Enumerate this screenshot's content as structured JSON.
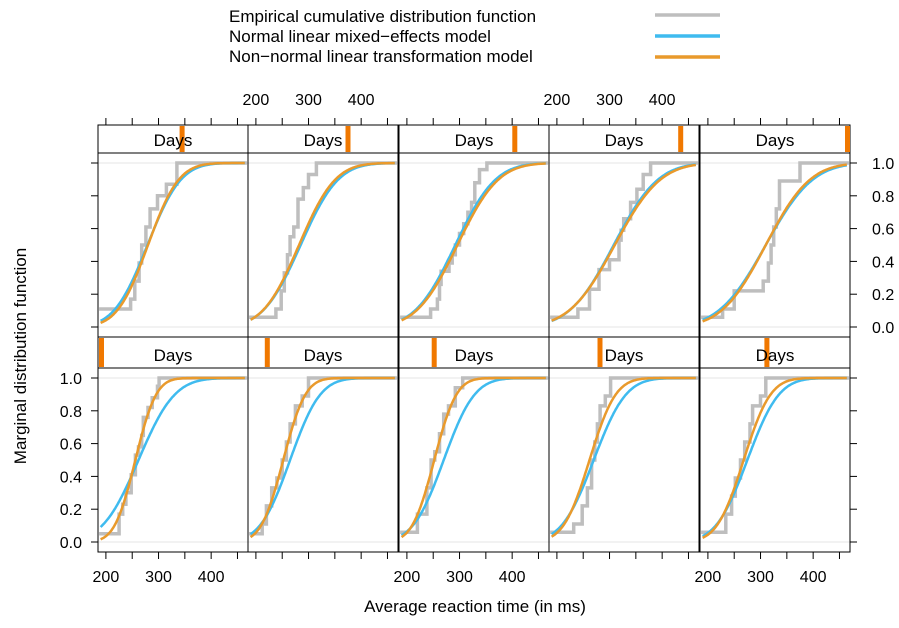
{
  "chart_data": {
    "type": "line",
    "title": "",
    "xlabel": "Average reaction time (in ms)",
    "ylabel": "Marginal distribution function",
    "xlim": [
      185,
      470
    ],
    "ylim": [
      0,
      1
    ],
    "x_ticks": [
      200,
      300,
      400
    ],
    "y_ticks": [
      0.0,
      0.2,
      0.4,
      0.6,
      0.8,
      1.0
    ],
    "y_tick_labels": [
      "0.0",
      "0.2",
      "0.4",
      "0.6",
      "0.8",
      "1.0"
    ],
    "panel_strip_label": "Days",
    "layout": {
      "rows": 2,
      "cols": 5
    },
    "legend": {
      "placement": "top",
      "entries": [
        {
          "label": "Empirical cumulative distribution function",
          "color": "#bebebe"
        },
        {
          "label": "Normal linear mixed−effects model",
          "color": "#3fbbef"
        },
        {
          "label": "Non−normal linear transformation model",
          "color": "#e99a2c"
        }
      ]
    },
    "strip_indicator_color": "#f07800",
    "grid": false,
    "panels": [
      {
        "day_fraction": 0.0,
        "ecdf": [
          [
            207,
            0.05
          ],
          [
            218,
            0.05
          ],
          [
            225,
            0.17
          ],
          [
            232,
            0.23
          ],
          [
            238,
            0.3
          ],
          [
            248,
            0.41
          ],
          [
            256,
            0.53
          ],
          [
            262,
            0.58
          ],
          [
            268,
            0.65
          ],
          [
            271,
            0.76
          ],
          [
            280,
            0.82
          ],
          [
            288,
            0.88
          ],
          [
            298,
            0.95
          ],
          [
            301,
            1.0
          ]
        ],
        "series": [
          {
            "name": "Normal linear mixed−effects model",
            "mu": 262,
            "sigma": 54
          },
          {
            "name": "Non−normal linear transformation model",
            "mu": 256,
            "sigma": 31
          }
        ]
      },
      {
        "day_fraction": 0.11,
        "ecdf": [
          [
            198,
            0.05
          ],
          [
            212,
            0.11
          ],
          [
            220,
            0.22
          ],
          [
            230,
            0.33
          ],
          [
            240,
            0.39
          ],
          [
            250,
            0.5
          ],
          [
            258,
            0.61
          ],
          [
            265,
            0.72
          ],
          [
            275,
            0.83
          ],
          [
            288,
            0.89
          ],
          [
            300,
            1.0
          ]
        ],
        "series": [
          {
            "name": "Normal linear mixed−effects model",
            "mu": 265,
            "sigma": 45
          },
          {
            "name": "Non−normal linear transformation model",
            "mu": 252,
            "sigma": 33
          }
        ]
      },
      {
        "day_fraction": 0.22,
        "ecdf": [
          [
            204,
            0.06
          ],
          [
            214,
            0.06
          ],
          [
            220,
            0.17
          ],
          [
            238,
            0.33
          ],
          [
            246,
            0.5
          ],
          [
            253,
            0.55
          ],
          [
            262,
            0.66
          ],
          [
            270,
            0.78
          ],
          [
            279,
            0.83
          ],
          [
            292,
            0.94
          ],
          [
            306,
            1.0
          ]
        ],
        "series": [
          {
            "name": "Normal linear mixed−effects model",
            "mu": 270,
            "sigma": 46
          },
          {
            "name": "Non−normal linear transformation model",
            "mu": 252,
            "sigma": 33
          }
        ]
      },
      {
        "day_fraction": 0.33,
        "ecdf": [
          [
            214,
            0.06
          ],
          [
            232,
            0.11
          ],
          [
            248,
            0.22
          ],
          [
            258,
            0.33
          ],
          [
            266,
            0.5
          ],
          [
            272,
            0.61
          ],
          [
            277,
            0.72
          ],
          [
            282,
            0.83
          ],
          [
            292,
            0.89
          ],
          [
            302,
            1.0
          ]
        ],
        "series": [
          {
            "name": "Normal linear mixed−effects model",
            "mu": 270,
            "sigma": 48
          },
          {
            "name": "Non−normal linear transformation model",
            "mu": 262,
            "sigma": 39
          }
        ]
      },
      {
        "day_fraction": 0.44,
        "ecdf": [
          [
            220,
            0.06
          ],
          [
            234,
            0.17
          ],
          [
            245,
            0.28
          ],
          [
            252,
            0.39
          ],
          [
            262,
            0.5
          ],
          [
            270,
            0.61
          ],
          [
            280,
            0.72
          ],
          [
            285,
            0.83
          ],
          [
            300,
            0.89
          ],
          [
            310,
            1.0
          ]
        ],
        "series": [
          {
            "name": "Normal linear mixed−effects model",
            "mu": 275,
            "sigma": 47
          },
          {
            "name": "Non−normal linear transformation model",
            "mu": 268,
            "sigma": 40
          }
        ]
      },
      {
        "day_fraction": 0.56,
        "ecdf": [
          [
            218,
            0.11
          ],
          [
            232,
            0.11
          ],
          [
            247,
            0.17
          ],
          [
            255,
            0.28
          ],
          [
            263,
            0.39
          ],
          [
            268,
            0.5
          ],
          [
            276,
            0.61
          ],
          [
            284,
            0.72
          ],
          [
            298,
            0.8
          ],
          [
            315,
            0.87
          ],
          [
            335,
            1.0
          ]
        ],
        "series": [
          {
            "name": "Normal linear mixed−effects model",
            "mu": 279,
            "sigma": 50
          },
          {
            "name": "Non−normal linear transformation model",
            "mu": 280,
            "sigma": 46
          }
        ]
      },
      {
        "day_fraction": 0.67,
        "ecdf": [
          [
            224,
            0.06
          ],
          [
            238,
            0.11
          ],
          [
            248,
            0.22
          ],
          [
            254,
            0.33
          ],
          [
            260,
            0.44
          ],
          [
            265,
            0.55
          ],
          [
            272,
            0.61
          ],
          [
            280,
            0.78
          ],
          [
            290,
            0.85
          ],
          [
            300,
            0.93
          ],
          [
            315,
            1.0
          ]
        ],
        "series": [
          {
            "name": "Normal linear mixed−effects model",
            "mu": 285,
            "sigma": 56
          },
          {
            "name": "Non−normal linear transformation model",
            "mu": 282,
            "sigma": 54
          }
        ]
      },
      {
        "day_fraction": 0.78,
        "ecdf": [
          [
            222,
            0.06
          ],
          [
            245,
            0.11
          ],
          [
            258,
            0.17
          ],
          [
            262,
            0.26
          ],
          [
            265,
            0.34
          ],
          [
            280,
            0.39
          ],
          [
            286,
            0.44
          ],
          [
            292,
            0.5
          ],
          [
            300,
            0.57
          ],
          [
            308,
            0.63
          ],
          [
            316,
            0.7
          ],
          [
            323,
            0.76
          ],
          [
            329,
            0.88
          ],
          [
            338,
            0.96
          ],
          [
            352,
            1.0
          ]
        ],
        "series": [
          {
            "name": "Normal linear mixed−effects model",
            "mu": 292,
            "sigma": 60
          },
          {
            "name": "Non−normal linear transformation model",
            "mu": 296,
            "sigma": 61
          }
        ]
      },
      {
        "day_fraction": 0.89,
        "ecdf": [
          [
            210,
            0.06
          ],
          [
            240,
            0.11
          ],
          [
            262,
            0.23
          ],
          [
            280,
            0.35
          ],
          [
            300,
            0.41
          ],
          [
            318,
            0.53
          ],
          [
            322,
            0.59
          ],
          [
            327,
            0.66
          ],
          [
            340,
            0.76
          ],
          [
            352,
            0.84
          ],
          [
            364,
            0.93
          ],
          [
            378,
            1.0
          ]
        ],
        "series": [
          {
            "name": "Normal linear mixed−effects model",
            "mu": 308,
            "sigma": 66
          },
          {
            "name": "Non−normal linear transformation model",
            "mu": 310,
            "sigma": 68
          }
        ]
      },
      {
        "day_fraction": 1.0,
        "ecdf": [
          [
            205,
            0.06
          ],
          [
            228,
            0.11
          ],
          [
            250,
            0.22
          ],
          [
            270,
            0.22
          ],
          [
            295,
            0.22
          ],
          [
            305,
            0.28
          ],
          [
            315,
            0.39
          ],
          [
            320,
            0.5
          ],
          [
            325,
            0.61
          ],
          [
            330,
            0.72
          ],
          [
            336,
            0.89
          ],
          [
            360,
            0.89
          ],
          [
            375,
            1.0
          ]
        ],
        "series": [
          {
            "name": "Normal linear mixed−effects model",
            "mu": 310,
            "sigma": 70
          },
          {
            "name": "Non−normal linear transformation model",
            "mu": 310,
            "sigma": 66
          }
        ]
      }
    ]
  }
}
